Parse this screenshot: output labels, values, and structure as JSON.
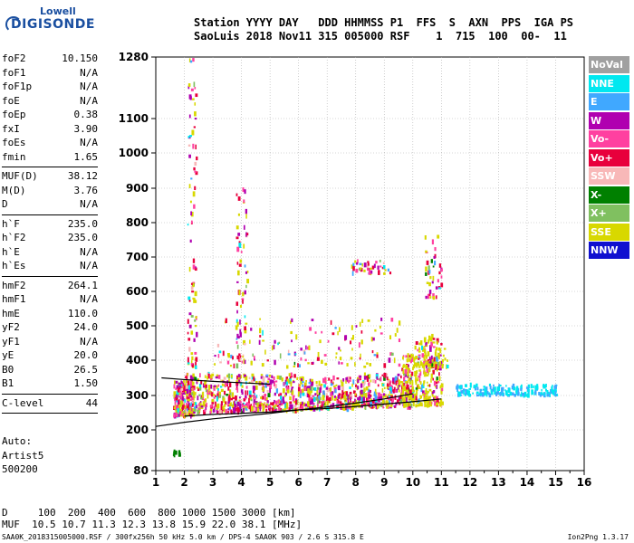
{
  "logo": {
    "line1": "Lowell",
    "line2": "DIGISONDE"
  },
  "header": {
    "labels": "Station YYYY DAY   DDD HHMMSS P1  FFS  S  AXN  PPS  IGA PS",
    "values": "SaoLuis 2018 Nov11 315 005000 RSF    1  715  100  00-  11"
  },
  "params": [
    {
      "name": "foF2",
      "value": "10.150"
    },
    {
      "name": "foF1",
      "value": "N/A"
    },
    {
      "name": "foF1p",
      "value": "N/A"
    },
    {
      "name": "foE",
      "value": "N/A"
    },
    {
      "name": "foEp",
      "value": "0.38"
    },
    {
      "name": "fxI",
      "value": "3.90"
    },
    {
      "name": "foEs",
      "value": "N/A"
    },
    {
      "name": "fmin",
      "value": "1.65"
    },
    {
      "sep": true
    },
    {
      "name": "MUF(D)",
      "value": "38.12"
    },
    {
      "name": "M(D)",
      "value": "3.76"
    },
    {
      "name": "D",
      "value": "N/A"
    },
    {
      "sep": true
    },
    {
      "name": "h`F",
      "value": "235.0"
    },
    {
      "name": "h`F2",
      "value": "235.0"
    },
    {
      "name": "h`E",
      "value": "N/A"
    },
    {
      "name": "h`Es",
      "value": "N/A"
    },
    {
      "sep": true
    },
    {
      "name": "hmF2",
      "value": "264.1"
    },
    {
      "name": "hmF1",
      "value": "N/A"
    },
    {
      "name": "hmE",
      "value": "110.0"
    },
    {
      "name": "yF2",
      "value": "24.0"
    },
    {
      "name": "yF1",
      "value": "N/A"
    },
    {
      "name": "yE",
      "value": "20.0"
    },
    {
      "name": "B0",
      "value": "26.5"
    },
    {
      "name": "B1",
      "value": "1.50"
    },
    {
      "sep": true
    },
    {
      "name": "C-level",
      "value": "44"
    },
    {
      "sep": true
    }
  ],
  "auto": {
    "l1": "Auto:",
    "l2": "Artist5",
    "l3": "500200"
  },
  "legend": [
    {
      "label": "NoVal",
      "color": "#a0a0a0"
    },
    {
      "label": "NNE",
      "color": "#00e8f0"
    },
    {
      "label": "E",
      "color": "#40a8ff"
    },
    {
      "label": "W",
      "color": "#b000b0"
    },
    {
      "label": "Vo-",
      "color": "#ff40a0"
    },
    {
      "label": "Vo+",
      "color": "#e8003c"
    },
    {
      "label": "SSW",
      "color": "#f8b8b8"
    },
    {
      "label": "X-",
      "color": "#008000"
    },
    {
      "label": "X+",
      "color": "#80c060"
    },
    {
      "label": "SSE",
      "color": "#d8d800"
    },
    {
      "label": "NNW",
      "color": "#1010d0"
    }
  ],
  "footer": {
    "line1": "D     100  200  400  600  800 1000 1500 3000 [km]",
    "line2": "MUF  10.5 10.7 11.3 12.3 13.8 15.9 22.0 38.1 [MHz]",
    "fileinfo": "SAA0K_2018315005000.RSF / 300fx256h 50 kHz 5.0 km / DPS-4 SAA0K 903 / 2.6 S 315.8 E",
    "version": "Ion2Png 1.3.17"
  },
  "chart_data": {
    "type": "scatter",
    "title": "",
    "xlabel": "",
    "ylabel": "",
    "xlim": [
      1,
      16
    ],
    "ylim": [
      80,
      1280
    ],
    "x_ticks": [
      "1",
      "2",
      "3",
      "4",
      "5",
      "6",
      "7",
      "8",
      "9",
      "10",
      "11",
      "12",
      "13",
      "14",
      "15",
      "16"
    ],
    "y_ticks": [
      "80",
      "200",
      "300",
      "400",
      "500",
      "600",
      "700",
      "800",
      "900",
      "1000",
      "1100",
      "1280"
    ],
    "grid": true,
    "legend_placement": "right",
    "y_scale": "nonlinear",
    "y_tick_values": [
      80,
      200,
      300,
      400,
      500,
      600,
      700,
      800,
      900,
      1000,
      1100,
      1280
    ],
    "trace_lines": [
      {
        "x": [
          1,
          2,
          3,
          4,
          5,
          6,
          7,
          8,
          9,
          10
        ],
        "y": [
          210,
          222,
          232,
          240,
          248,
          258,
          267,
          278,
          290,
          305
        ]
      },
      {
        "x": [
          2,
          3,
          4,
          5,
          6,
          7,
          8,
          9,
          10,
          11
        ],
        "y": [
          240,
          245,
          248,
          252,
          258,
          262,
          268,
          275,
          282,
          290
        ]
      },
      {
        "x": [
          1.2,
          2,
          3,
          4,
          5
        ],
        "y": [
          350,
          345,
          340,
          336,
          332
        ]
      }
    ],
    "clusters": [
      {
        "x": [
          1.6,
          2.3
        ],
        "y": [
          240,
          340
        ],
        "n": 220
      },
      {
        "x": [
          2.0,
          4.0
        ],
        "y": [
          250,
          360
        ],
        "n": 260
      },
      {
        "x": [
          4.0,
          6.0
        ],
        "y": [
          255,
          360
        ],
        "n": 260
      },
      {
        "x": [
          6.0,
          8.0
        ],
        "y": [
          260,
          350
        ],
        "n": 260
      },
      {
        "x": [
          8.0,
          10.0
        ],
        "y": [
          265,
          360
        ],
        "n": 260
      },
      {
        "x": [
          9.6,
          11.0
        ],
        "y": [
          270,
          420
        ],
        "n": 260
      },
      {
        "x": [
          10.0,
          11.2
        ],
        "y": [
          380,
          470
        ],
        "n": 90
      },
      {
        "x": [
          11.5,
          15.0
        ],
        "y": [
          300,
          330
        ],
        "n": 170
      },
      {
        "x": [
          2.1,
          2.4
        ],
        "y": [
          380,
          1280
        ],
        "n": 90
      },
      {
        "x": [
          3.8,
          4.2
        ],
        "y": [
          380,
          900
        ],
        "n": 60
      },
      {
        "x": [
          3.0,
          9.5
        ],
        "y": [
          380,
          520
        ],
        "n": 140
      },
      {
        "x": [
          7.8,
          9.2
        ],
        "y": [
          650,
          690
        ],
        "n": 40
      },
      {
        "x": [
          10.4,
          11.0
        ],
        "y": [
          580,
          760
        ],
        "n": 40
      },
      {
        "x": [
          1.5,
          1.8
        ],
        "y": [
          125,
          140
        ],
        "n": 8
      }
    ]
  }
}
